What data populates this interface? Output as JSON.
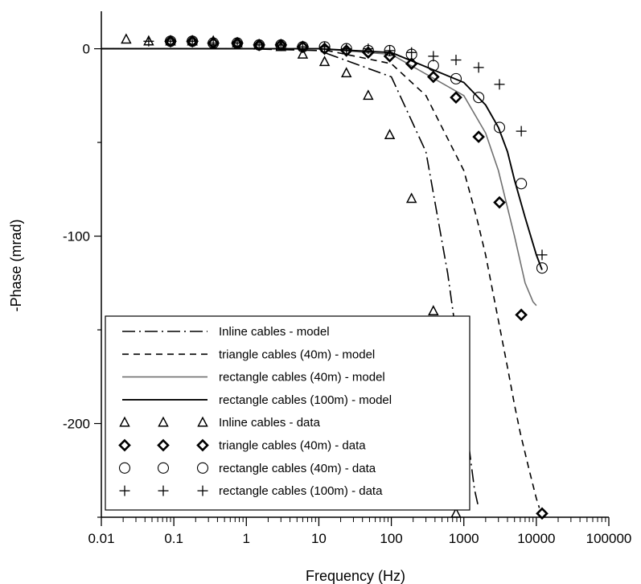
{
  "chart_data": {
    "type": "scatter",
    "title": "",
    "xlabel": "Frequency (Hz)",
    "ylabel": "-Phase (mrad)",
    "x_scale": "log",
    "xlim": [
      0.01,
      100000
    ],
    "ylim": [
      -250,
      20
    ],
    "x_tick_labels": [
      "0.01",
      "0.1",
      "1",
      "10",
      "100",
      "1000",
      "10000",
      "100000"
    ],
    "y_tick_labels": [
      "0",
      "-100",
      "-200"
    ],
    "grid": false,
    "legend_placement": "bottom-left",
    "series": [
      {
        "name": "Inline cables - model",
        "kind": "line",
        "style": "dash-dot",
        "color": "#000000",
        "x": [
          0.01,
          1,
          10,
          100,
          300,
          600,
          800,
          1000,
          1200,
          1400,
          1600
        ],
        "y": [
          0,
          0,
          -1,
          -15,
          -55,
          -120,
          -155,
          -190,
          -215,
          -235,
          -245
        ]
      },
      {
        "name": "triangle cables (40m) - model",
        "kind": "line",
        "style": "dashed",
        "color": "#000000",
        "x": [
          0.01,
          1,
          10,
          100,
          300,
          1000,
          1500,
          2000,
          3000,
          4000,
          5000,
          6000,
          8000,
          10000,
          11000
        ],
        "y": [
          0,
          0,
          0,
          -8,
          -25,
          -65,
          -90,
          -110,
          -145,
          -170,
          -190,
          -205,
          -225,
          -240,
          -245
        ]
      },
      {
        "name": "rectangle cables (40m) - model",
        "kind": "line",
        "style": "solid-thin",
        "color": "#707070",
        "x": [
          0.01,
          1,
          10,
          100,
          1000,
          2000,
          3000,
          5000,
          7000,
          9000,
          10000
        ],
        "y": [
          0,
          0,
          0,
          -3,
          -25,
          -45,
          -65,
          -100,
          -125,
          -135,
          -137
        ]
      },
      {
        "name": "rectangle cables (100m) - model",
        "kind": "line",
        "style": "solid",
        "color": "#000000",
        "x": [
          0.01,
          1,
          10,
          100,
          1000,
          2000,
          3000,
          4000,
          5000,
          7000,
          10000,
          12000
        ],
        "y": [
          0,
          0,
          0,
          -2,
          -18,
          -30,
          -42,
          -55,
          -70,
          -90,
          -110,
          -118
        ]
      },
      {
        "name": "Inline cables - data",
        "kind": "markers",
        "marker": "triangle",
        "x": [
          0.022,
          0.045,
          0.09,
          0.18,
          0.35,
          0.75,
          1.5,
          3,
          6,
          12,
          24,
          48,
          95,
          190,
          380,
          780
        ],
        "y": [
          5,
          4,
          4,
          4,
          4,
          3,
          2,
          1,
          -3,
          -7,
          -13,
          -25,
          -46,
          -80,
          -140,
          -248
        ]
      },
      {
        "name": "triangle cables (40m) - data",
        "kind": "markers",
        "marker": "diamond",
        "x": [
          0.09,
          0.18,
          0.35,
          0.75,
          1.5,
          3,
          6,
          12,
          24,
          48,
          95,
          190,
          380,
          780,
          1600,
          3100,
          6200,
          12000
        ],
        "y": [
          4,
          4,
          3,
          3,
          2,
          2,
          1,
          0,
          -1,
          -2,
          -4,
          -8,
          -15,
          -26,
          -47,
          -82,
          -142,
          -248
        ]
      },
      {
        "name": "rectangle cables (40m) - data",
        "kind": "markers",
        "marker": "circle",
        "x": [
          0.09,
          0.18,
          0.35,
          0.75,
          1.5,
          3,
          6,
          12,
          24,
          48,
          95,
          190,
          380,
          780,
          1600,
          3100,
          6200,
          12000
        ],
        "y": [
          4,
          4,
          3,
          3,
          2,
          2,
          1,
          1,
          0,
          -1,
          -1,
          -3,
          -9,
          -16,
          -26,
          -42,
          -72,
          -117
        ]
      },
      {
        "name": "rectangle cables (100m) - data",
        "kind": "markers",
        "marker": "plus",
        "x": [
          0.045,
          0.09,
          0.18,
          0.35,
          0.75,
          1.5,
          3,
          6,
          12,
          24,
          48,
          95,
          190,
          380,
          780,
          1600,
          3100,
          6200,
          12000
        ],
        "y": [
          4,
          4,
          4,
          3,
          3,
          2,
          2,
          1,
          1,
          0,
          0,
          -1,
          -2,
          -4,
          -6,
          -10,
          -19,
          -44,
          -110
        ]
      }
    ]
  }
}
